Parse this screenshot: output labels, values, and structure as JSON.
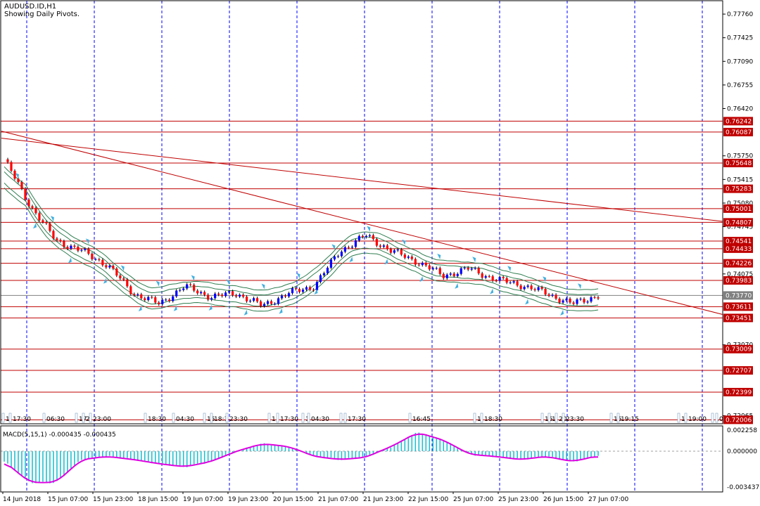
{
  "header": {
    "symbol": "AUDUSD.ID,H1",
    "subtitle": "Showing Daily Pivots."
  },
  "price_axis": {
    "ticks": [
      "0.77760",
      "0.77425",
      "0.77090",
      "0.76755",
      "0.76420",
      "0.75750",
      "0.75415",
      "0.75080",
      "0.74745",
      "0.74075",
      "0.73070",
      "0.72065"
    ]
  },
  "pivot_levels": [
    "0.76242",
    "0.76087",
    "0.75648",
    "0.75283",
    "0.75001",
    "0.74807",
    "0.74541",
    "0.74433",
    "0.74226",
    "0.73983",
    "0.73770",
    "0.73611",
    "0.73451",
    "0.73009",
    "0.72707",
    "0.72399",
    "0.72006"
  ],
  "current_price": "0.73770",
  "time_labels": [
    "1",
    "17:30",
    "06:30",
    "17",
    "2",
    "23:00",
    "18:30",
    "04:30",
    "15",
    "18:3",
    "23:30",
    "1",
    "17:30",
    "1",
    "04:30",
    "1",
    "17:30",
    "16:45",
    "1",
    "18:30",
    "15",
    "1",
    "20",
    "23:30",
    "15",
    "19:15",
    "1",
    "19:00",
    "1",
    "04"
  ],
  "macd": {
    "label": "MACD(5,15,1) -0.000435 -0.000435",
    "ticks": [
      "0.002258",
      "0.000000",
      "-0.003437"
    ]
  },
  "date_axis": [
    "14 Jun 2018",
    "15 Jun 07:00",
    "15 Jun 23:00",
    "18 Jun 15:00",
    "19 Jun 07:00",
    "19 Jun 23:00",
    "20 Jun 15:00",
    "21 Jun 07:00",
    "21 Jun 23:00",
    "22 Jun 15:00",
    "25 Jun 07:00",
    "25 Jun 23:00",
    "26 Jun 15:00",
    "27 Jun 07:00"
  ],
  "colors": {
    "bull": "#0000ff",
    "bear": "#ff0000",
    "pivot": "#c00000",
    "band": "#2e7d4f",
    "trend": "#c00000",
    "macd_hist": "#20c0d0",
    "macd_signal": "#e000e0",
    "vgrid": "#0000ff"
  },
  "chart_data": {
    "type": "candlestick",
    "x": [
      "14 Jun 2018",
      "15 Jun 07:00",
      "15 Jun 23:00",
      "18 Jun 15:00",
      "19 Jun 07:00",
      "19 Jun 23:00",
      "20 Jun 15:00",
      "21 Jun 07:00",
      "21 Jun 23:00",
      "22 Jun 15:00",
      "25 Jun 07:00",
      "25 Jun 23:00",
      "26 Jun 15:00",
      "27 Jun 07:00"
    ],
    "close_trace": [
      0.757,
      0.7505,
      0.7455,
      0.744,
      0.742,
      0.738,
      0.7365,
      0.739,
      0.7375,
      0.738,
      0.7362,
      0.738,
      0.739,
      0.744,
      0.7462,
      0.744,
      0.7425,
      0.7405,
      0.7415,
      0.74,
      0.7392,
      0.738,
      0.7365,
      0.7377
    ],
    "macd_values": [
      -0.001,
      -0.003,
      -0.003,
      -0.0008,
      -0.0005,
      -0.0008,
      -0.0012,
      -0.0015,
      -0.001,
      0.0,
      0.0008,
      0.0005,
      -0.0005,
      -0.0008,
      -0.0006,
      0.0005,
      0.002,
      0.0012,
      -0.0003,
      -0.0005,
      -0.0008,
      -0.0005,
      -0.001,
      -0.000435
    ]
  }
}
